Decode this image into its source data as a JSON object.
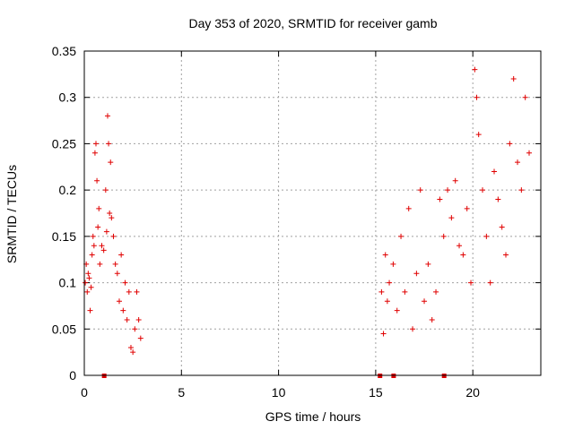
{
  "chart_data": {
    "type": "scatter",
    "title": "Day 353 of 2020, SRMTID for receiver gamb",
    "xlabel": "GPS time / hours",
    "ylabel": "SRMTID / TECUs",
    "xlim": [
      0,
      23.5
    ],
    "ylim": [
      0,
      0.35
    ],
    "x_ticks": [
      0,
      5,
      10,
      15,
      20
    ],
    "x_tick_labels": [
      "0",
      "5",
      "10",
      "15",
      "20"
    ],
    "y_ticks": [
      0,
      0.05,
      0.1,
      0.15,
      0.2,
      0.25,
      0.3,
      0.35
    ],
    "y_tick_labels": [
      "0",
      "0.05",
      "0.1",
      "0.15",
      "0.2",
      "0.25",
      "0.3",
      "0.35"
    ],
    "grid": true,
    "marker": "plus",
    "color": "#e00000",
    "zero_markers_x": [
      1.0,
      15.2,
      15.9,
      18.5
    ],
    "series": [
      {
        "name": "SRMTID",
        "points": [
          [
            0.05,
            0.1
          ],
          [
            0.1,
            0.12
          ],
          [
            0.15,
            0.09
          ],
          [
            0.2,
            0.11
          ],
          [
            0.25,
            0.105
          ],
          [
            0.3,
            0.07
          ],
          [
            0.35,
            0.095
          ],
          [
            0.4,
            0.13
          ],
          [
            0.45,
            0.15
          ],
          [
            0.5,
            0.14
          ],
          [
            0.55,
            0.24
          ],
          [
            0.6,
            0.25
          ],
          [
            0.65,
            0.21
          ],
          [
            0.7,
            0.16
          ],
          [
            0.75,
            0.18
          ],
          [
            0.8,
            0.12
          ],
          [
            0.9,
            0.14
          ],
          [
            1.0,
            0.135
          ],
          [
            1.1,
            0.2
          ],
          [
            1.15,
            0.155
          ],
          [
            1.2,
            0.28
          ],
          [
            1.25,
            0.25
          ],
          [
            1.3,
            0.175
          ],
          [
            1.35,
            0.23
          ],
          [
            1.4,
            0.17
          ],
          [
            1.5,
            0.15
          ],
          [
            1.6,
            0.12
          ],
          [
            1.7,
            0.11
          ],
          [
            1.8,
            0.08
          ],
          [
            1.9,
            0.13
          ],
          [
            2.0,
            0.07
          ],
          [
            2.1,
            0.1
          ],
          [
            2.2,
            0.06
          ],
          [
            2.3,
            0.09
          ],
          [
            2.4,
            0.03
          ],
          [
            2.5,
            0.025
          ],
          [
            2.6,
            0.05
          ],
          [
            2.7,
            0.09
          ],
          [
            2.8,
            0.06
          ],
          [
            2.9,
            0.04
          ],
          [
            15.3,
            0.09
          ],
          [
            15.4,
            0.045
          ],
          [
            15.5,
            0.13
          ],
          [
            15.6,
            0.08
          ],
          [
            15.7,
            0.1
          ],
          [
            15.9,
            0.12
          ],
          [
            16.1,
            0.07
          ],
          [
            16.3,
            0.15
          ],
          [
            16.5,
            0.09
          ],
          [
            16.7,
            0.18
          ],
          [
            16.9,
            0.05
          ],
          [
            17.1,
            0.11
          ],
          [
            17.3,
            0.2
          ],
          [
            17.5,
            0.08
          ],
          [
            17.7,
            0.12
          ],
          [
            17.9,
            0.06
          ],
          [
            18.1,
            0.09
          ],
          [
            18.3,
            0.19
          ],
          [
            18.5,
            0.15
          ],
          [
            18.7,
            0.2
          ],
          [
            18.9,
            0.17
          ],
          [
            19.1,
            0.21
          ],
          [
            19.3,
            0.14
          ],
          [
            19.5,
            0.13
          ],
          [
            19.7,
            0.18
          ],
          [
            19.9,
            0.1
          ],
          [
            20.1,
            0.33
          ],
          [
            20.2,
            0.3
          ],
          [
            20.3,
            0.26
          ],
          [
            20.5,
            0.2
          ],
          [
            20.7,
            0.15
          ],
          [
            20.9,
            0.1
          ],
          [
            21.1,
            0.22
          ],
          [
            21.3,
            0.19
          ],
          [
            21.5,
            0.16
          ],
          [
            21.7,
            0.13
          ],
          [
            21.9,
            0.25
          ],
          [
            22.1,
            0.32
          ],
          [
            22.3,
            0.23
          ],
          [
            22.5,
            0.2
          ],
          [
            22.7,
            0.3
          ],
          [
            22.9,
            0.24
          ]
        ]
      }
    ]
  }
}
